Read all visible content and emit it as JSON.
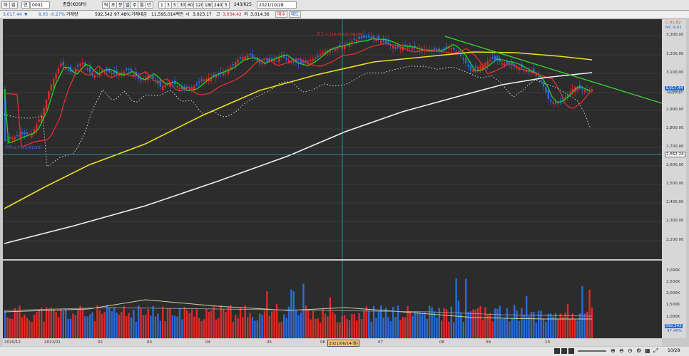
{
  "toolbar": {
    "left_buttons": [
      "하",
      "업",
      "연"
    ],
    "code": "0001",
    "index_name": "종합(KOSPI)",
    "period_buttons": [
      "틱",
      "초",
      "분",
      "일",
      "주",
      "월",
      "년"
    ],
    "interval_buttons": [
      "1",
      "3",
      "5",
      "30",
      "60",
      "120",
      "180",
      "240"
    ],
    "count": "5",
    "range": "243/625",
    "date": "2021/10/28"
  },
  "info": {
    "price": "3,017.44",
    "change": "8.05",
    "change_pct": "-0.27%",
    "volume_label": "거래량",
    "volume": "592,542",
    "volume_pct": "97.48%",
    "amount_label": "거래대금",
    "amount": "11,595,014백만",
    "open_label": "시",
    "open": "3,023.17",
    "high_label": "고",
    "high": "3,034.42",
    "low_label": "저",
    "low": "3,014.36",
    "buy_label": "매수",
    "sell_label": "매도"
  },
  "price_axis": {
    "ticks": [
      "3,300,00",
      "3,200,00",
      "3,100,00",
      "3,000,00",
      "2,900,00",
      "2,800,00",
      "2,700,00",
      "2,600,00",
      "2,500,00",
      "2,400,00",
      "2,300,00",
      "2,200,00"
    ],
    "hi_label": "C-31.62",
    "mc_label": "MC-9.01",
    "current": "3,017.44",
    "current_pct": "-0.27%",
    "crosshair": "2,662.24"
  },
  "volume_axis": {
    "ticks": [
      "3,000K",
      "2,500K",
      "2,000K",
      "1,500K",
      "1,000K"
    ],
    "current": "592,542",
    "current_pct": "97.48%"
  },
  "date_axis": {
    "labels": [
      "2020/12",
      "2021/01",
      "02",
      "03",
      "04",
      "05",
      "06",
      "07",
      "08",
      "09",
      "10"
    ],
    "crosshair": "2021/06/14(월)",
    "right_label": "10/28"
  },
  "annotations": {
    "top_red": "최고 3,316.08(21/06/25)",
    "left_blue": "최저 2,7 (21/01/29)"
  },
  "colors": {
    "up": "#e02a2a",
    "down": "#2a6cd8",
    "ma_green": "#22d022",
    "ma_red": "#e03030",
    "ma_yellow": "#e8e020",
    "ma_white": "#f0f0f0",
    "trend": "#3ad62c",
    "crosshair": "#2aa9b8"
  }
}
